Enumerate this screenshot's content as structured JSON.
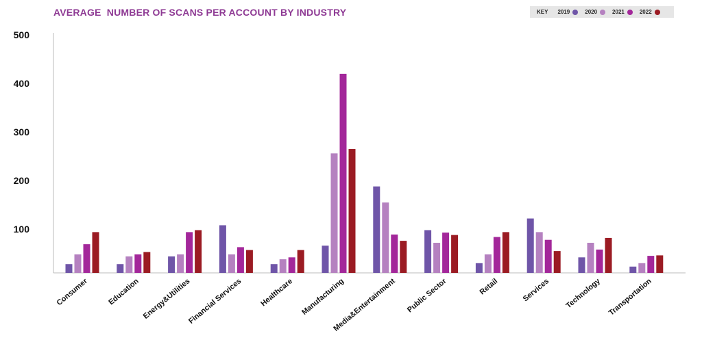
{
  "chart_data": {
    "type": "bar",
    "title": "AVERAGE  NUMBER OF SCANS PER ACCOUNT BY INDUSTRY",
    "legend_key_label": "KEY",
    "legend_position": "top-right",
    "xlabel": "",
    "ylabel": "",
    "ylim": [
      0,
      500
    ],
    "yticks": [
      "100",
      "200",
      "300",
      "400",
      "500"
    ],
    "categories": [
      "Consumer",
      "Education",
      "Energy&Utilities",
      "Financial Services",
      "Healthcare",
      "Manufacturing",
      "Media&Entertainment",
      "Public Sector",
      "Retail",
      "Services",
      "Technology",
      "Transportation"
    ],
    "series": [
      {
        "name": "2019",
        "color": "#6f55a8",
        "values": [
          28,
          28,
          44,
          108,
          28,
          66,
          188,
          98,
          30,
          122,
          42,
          23
        ]
      },
      {
        "name": "2020",
        "color": "#b581c0",
        "values": [
          48,
          44,
          48,
          48,
          38,
          256,
          155,
          72,
          48,
          94,
          72,
          30
        ]
      },
      {
        "name": "2021",
        "color": "#a3279a",
        "values": [
          69,
          48,
          94,
          63,
          42,
          420,
          89,
          93,
          84,
          78,
          58,
          45
        ]
      },
      {
        "name": "2022",
        "color": "#9b1b23",
        "values": [
          94,
          53,
          98,
          57,
          57,
          265,
          76,
          88,
          94,
          55,
          82,
          46
        ]
      }
    ],
    "grid": false
  }
}
